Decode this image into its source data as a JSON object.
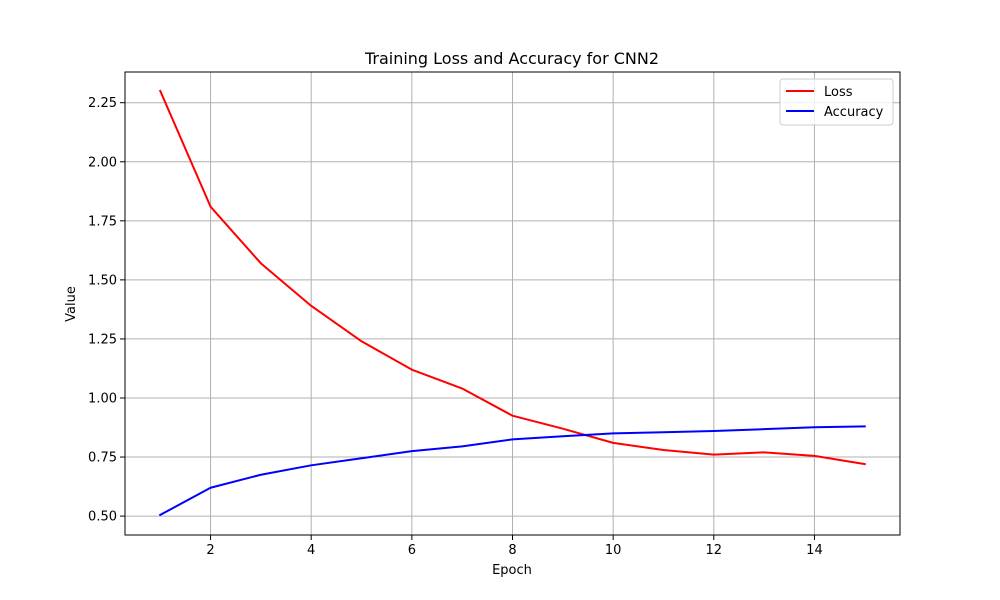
{
  "chart_data": {
    "type": "line",
    "title": "Training Loss and Accuracy for CNN2",
    "xlabel": "Epoch",
    "ylabel": "Value",
    "x": [
      1,
      2,
      3,
      4,
      5,
      6,
      7,
      8,
      9,
      10,
      11,
      12,
      13,
      14,
      15
    ],
    "xlim": [
      0.3,
      15.7
    ],
    "ylim": [
      0.42,
      2.38
    ],
    "xticks": [
      2,
      4,
      6,
      8,
      10,
      12,
      14
    ],
    "xtick_labels": [
      "2",
      "4",
      "6",
      "8",
      "10",
      "12",
      "14"
    ],
    "yticks": [
      0.5,
      0.75,
      1.0,
      1.25,
      1.5,
      1.75,
      2.0,
      2.25
    ],
    "ytick_labels": [
      "0.50",
      "0.75",
      "1.00",
      "1.25",
      "1.50",
      "1.75",
      "2.00",
      "2.25"
    ],
    "grid": true,
    "legend_position": "top-right",
    "series": [
      {
        "name": "Loss",
        "color": "#ff0000",
        "values": [
          2.3,
          1.81,
          1.57,
          1.39,
          1.24,
          1.12,
          1.04,
          0.925,
          0.87,
          0.81,
          0.78,
          0.76,
          0.77,
          0.755,
          0.72
        ]
      },
      {
        "name": "Accuracy",
        "color": "#0000ff",
        "values": [
          0.505,
          0.62,
          0.675,
          0.715,
          0.745,
          0.775,
          0.795,
          0.825,
          0.838,
          0.85,
          0.855,
          0.86,
          0.868,
          0.876,
          0.88
        ]
      }
    ]
  }
}
